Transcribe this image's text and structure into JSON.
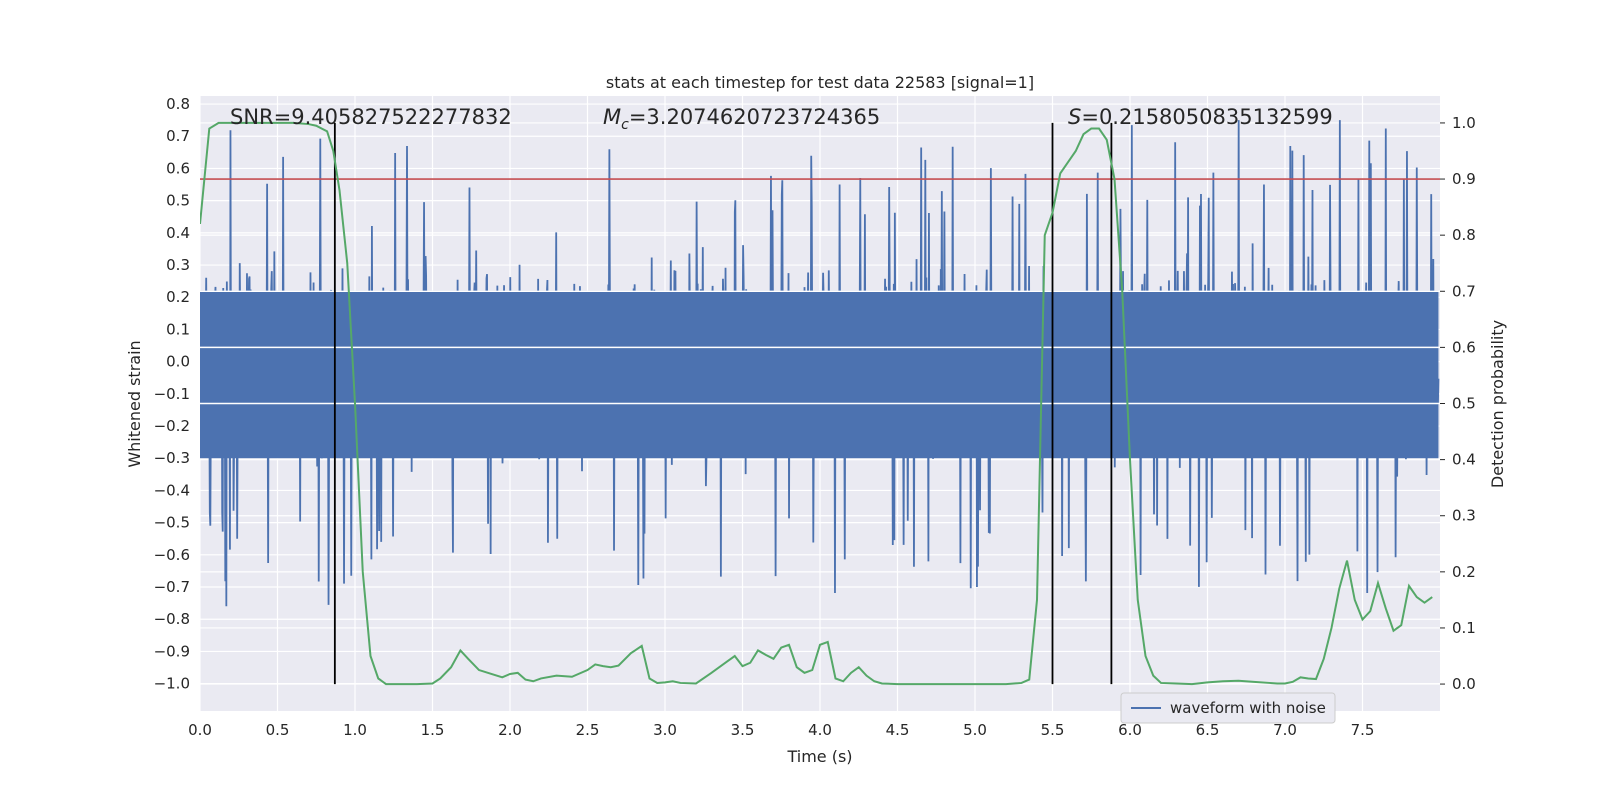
{
  "chart_data": {
    "type": "line",
    "title": "stats at each timestep for test data 22583 [signal=1]",
    "xlabel": "Time (s)",
    "ylabel": "Whitened strain",
    "y2label": "Detection probability",
    "xlim": [
      0.0,
      8.0
    ],
    "ylim": [
      -1.085,
      0.825
    ],
    "y2lim": [
      -0.048,
      1.048
    ],
    "xticks": [
      "0.0",
      "0.5",
      "1.0",
      "1.5",
      "2.0",
      "2.5",
      "3.0",
      "3.5",
      "4.0",
      "4.5",
      "5.0",
      "5.5",
      "6.0",
      "6.5",
      "7.0",
      "7.5"
    ],
    "yticks": [
      "0.8",
      "0.7",
      "0.6",
      "0.5",
      "0.4",
      "0.3",
      "0.2",
      "0.1",
      "0.0",
      "−0.1",
      "−0.2",
      "−0.3",
      "−0.4",
      "−0.5",
      "−0.6",
      "−0.7",
      "−0.8",
      "−0.9",
      "−1.0"
    ],
    "y2ticks": [
      "1.0",
      "0.9",
      "0.8",
      "0.7",
      "0.6",
      "0.5",
      "0.4",
      "0.3",
      "0.2",
      "0.1",
      "0.0"
    ],
    "grid": true,
    "legend_position": "lower-right",
    "annotations": {
      "snr": "SNR=9.405827522277832",
      "mc_symbol": "M",
      "mc_sub": "c",
      "mc_value": "=3.2074620723724365",
      "s_symbol": "S",
      "s_value": "=0.2158050835132599"
    },
    "threshold": {
      "value": 0.9,
      "axis": "y2",
      "color": "#c44e52"
    },
    "vertical_lines": [
      0.87,
      5.5,
      5.88
    ],
    "series": [
      {
        "name": "waveform with noise",
        "axis": "y",
        "color": "#4c72b0",
        "description_note": "",
        "envelope": {
          "typical": 0.22,
          "peak": 0.75,
          "seed": 22583,
          "count": 2400
        }
      },
      {
        "name": "",
        "axis": "y2",
        "color": "#55a868",
        "x": [
          0.0,
          0.06,
          0.12,
          0.2,
          0.3,
          0.4,
          0.5,
          0.6,
          0.7,
          0.75,
          0.82,
          0.86,
          0.9,
          0.95,
          1.0,
          1.05,
          1.1,
          1.15,
          1.2,
          1.3,
          1.4,
          1.5,
          1.55,
          1.62,
          1.68,
          1.73,
          1.8,
          1.88,
          1.95,
          2.0,
          2.05,
          2.1,
          2.15,
          2.2,
          2.3,
          2.4,
          2.5,
          2.55,
          2.6,
          2.65,
          2.7,
          2.78,
          2.85,
          2.9,
          2.95,
          3.0,
          3.05,
          3.1,
          3.2,
          3.3,
          3.4,
          3.45,
          3.5,
          3.55,
          3.6,
          3.65,
          3.7,
          3.75,
          3.8,
          3.85,
          3.9,
          3.95,
          4.0,
          4.05,
          4.1,
          4.15,
          4.2,
          4.25,
          4.3,
          4.35,
          4.4,
          4.5,
          4.6,
          4.7,
          4.8,
          4.9,
          5.0,
          5.1,
          5.2,
          5.3,
          5.35,
          5.4,
          5.45,
          5.5,
          5.55,
          5.6,
          5.65,
          5.7,
          5.75,
          5.8,
          5.85,
          5.9,
          5.95,
          6.0,
          6.05,
          6.1,
          6.15,
          6.2,
          6.3,
          6.4,
          6.5,
          6.6,
          6.7,
          6.8,
          6.9,
          6.95,
          7.0,
          7.05,
          7.1,
          7.15,
          7.2,
          7.25,
          7.3,
          7.35,
          7.4,
          7.45,
          7.5,
          7.55,
          7.6,
          7.65,
          7.7,
          7.75,
          7.8,
          7.85,
          7.9,
          7.95
        ],
        "values": [
          0.82,
          0.99,
          1.0,
          1.0,
          1.0,
          1.0,
          1.0,
          1.0,
          0.998,
          0.995,
          0.985,
          0.95,
          0.88,
          0.75,
          0.5,
          0.2,
          0.05,
          0.01,
          0.0,
          0.0,
          0.0,
          0.001,
          0.01,
          0.03,
          0.06,
          0.045,
          0.025,
          0.018,
          0.012,
          0.018,
          0.02,
          0.008,
          0.005,
          0.01,
          0.015,
          0.013,
          0.025,
          0.035,
          0.032,
          0.03,
          0.033,
          0.055,
          0.068,
          0.01,
          0.002,
          0.003,
          0.005,
          0.002,
          0.001,
          0.02,
          0.04,
          0.05,
          0.032,
          0.038,
          0.06,
          0.052,
          0.045,
          0.065,
          0.07,
          0.03,
          0.02,
          0.025,
          0.07,
          0.075,
          0.01,
          0.005,
          0.02,
          0.03,
          0.015,
          0.005,
          0.001,
          0.0,
          0.0,
          0.0,
          0.0,
          0.0,
          0.0,
          0.0,
          0.0,
          0.002,
          0.008,
          0.15,
          0.8,
          0.84,
          0.91,
          0.93,
          0.95,
          0.98,
          0.99,
          0.99,
          0.97,
          0.9,
          0.7,
          0.4,
          0.15,
          0.05,
          0.015,
          0.002,
          0.001,
          0.0,
          0.003,
          0.005,
          0.006,
          0.004,
          0.002,
          0.001,
          0.001,
          0.004,
          0.012,
          0.01,
          0.009,
          0.045,
          0.1,
          0.17,
          0.22,
          0.15,
          0.115,
          0.13,
          0.18,
          0.135,
          0.095,
          0.105,
          0.175,
          0.155,
          0.145,
          0.155
        ]
      }
    ]
  }
}
